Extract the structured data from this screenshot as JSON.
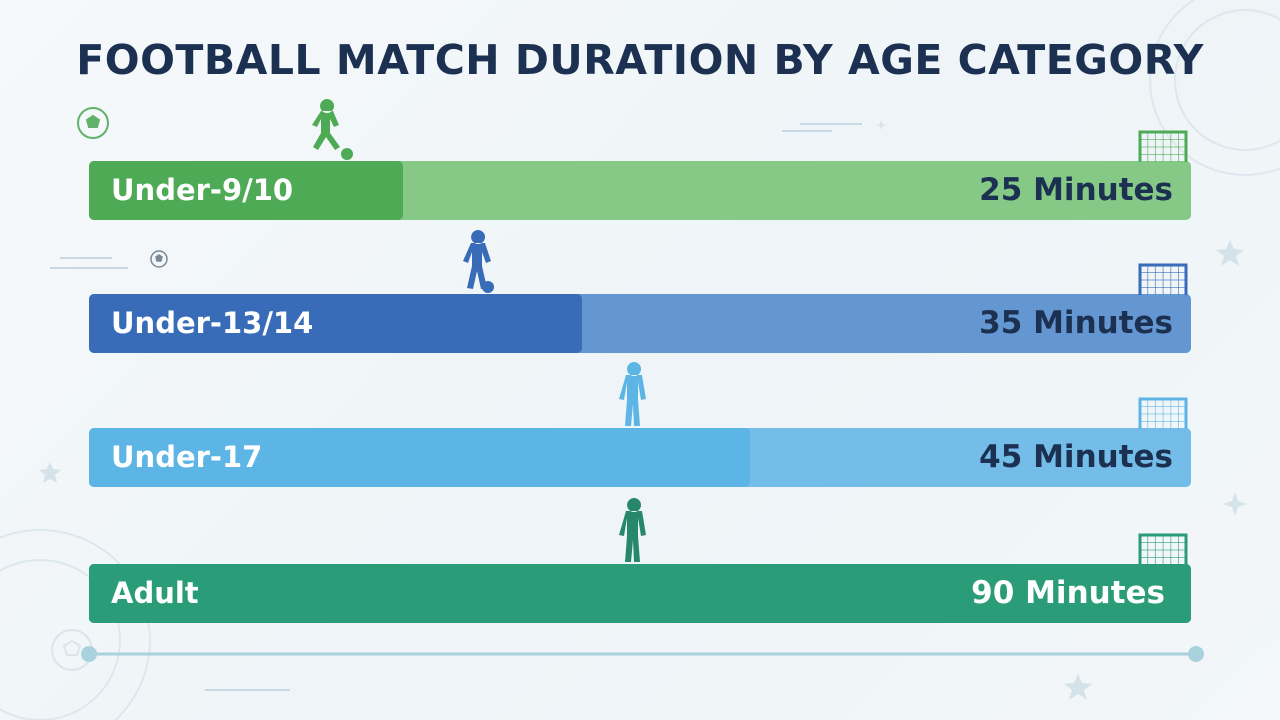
{
  "title": "FOOTBALL MATCH DURATION BY AGE CATEGORY",
  "colors": {
    "title": "#1c3152",
    "timeline": "#a9d2dc",
    "rows": [
      {
        "track": "#86c986",
        "fill": "#4faa56",
        "value_text": "#1c3152",
        "figure": "#4faa56"
      },
      {
        "track": "#6496d2",
        "fill": "#386cb9",
        "value_text": "#1c3152",
        "figure": "#386cb9"
      },
      {
        "track": "#73bde8",
        "fill": "#5db5e5",
        "value_text": "#1c3152",
        "figure": "#5db5e5"
      },
      {
        "track": "#2a9c78",
        "fill": "#2a9c78",
        "value_text": "#ffffff",
        "figure": "#27876a"
      }
    ]
  },
  "icons": [
    "soccer-ball-icon",
    "child-player-icon",
    "youth-player-icon",
    "standing-player-icon",
    "adult-player-icon",
    "goal-net-icon",
    "star-icon"
  ],
  "chart_data": {
    "type": "bar",
    "orientation": "horizontal",
    "title": "FOOTBALL MATCH DURATION BY AGE CATEGORY",
    "categories": [
      "Under-9/10",
      "Under-13/14",
      "Under-17",
      "Adult"
    ],
    "values": [
      25,
      35,
      45,
      90
    ],
    "value_labels": [
      "25 Minutes",
      "35 Minutes",
      "45 Minutes",
      "90 Minutes"
    ],
    "unit": "Minutes",
    "xlim": [
      0,
      90
    ],
    "grid": false,
    "legend": "none"
  }
}
